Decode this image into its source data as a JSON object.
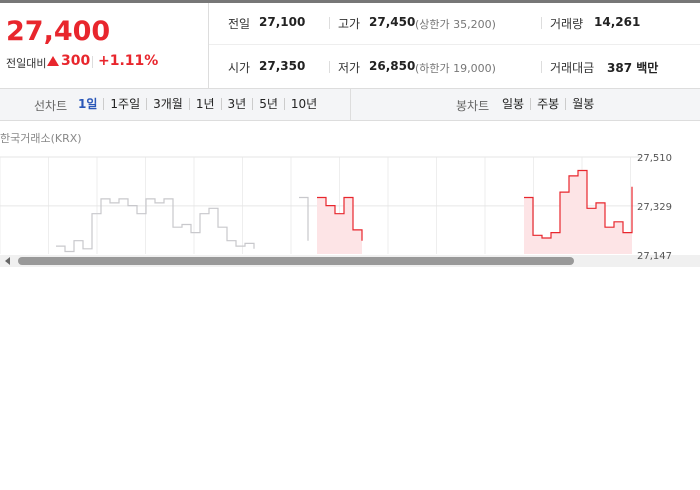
{
  "header": {
    "price": "27,400",
    "change_label": "전일대비",
    "change": "300",
    "change_pct": "+1.11%",
    "stats": [
      {
        "label": "전일",
        "value": "27,100"
      },
      {
        "label": "고가",
        "value": "27,450",
        "note": "(상한가 35,200)"
      },
      {
        "label": "거래량",
        "value": "14,261"
      },
      {
        "label": "시가",
        "value": "27,350"
      },
      {
        "label": "저가",
        "value": "26,850",
        "note": "(하한가 19,000)"
      },
      {
        "label": "거래대금",
        "value": "387 백만"
      }
    ]
  },
  "tabs": {
    "line_label": "선차트",
    "line_tabs": [
      "1일",
      "1주일",
      "3개월",
      "1년",
      "3년",
      "5년",
      "10년"
    ],
    "candle_label": "봉차트",
    "candle_tabs": [
      "일봉",
      "주봉",
      "월봉"
    ]
  },
  "chart_data": {
    "type": "line",
    "source": "한국거래소(KRX)",
    "ylim": [
      27147,
      27510
    ],
    "yticks": [
      {
        "value": 27510,
        "label": "27,510"
      },
      {
        "value": 27329,
        "label": "27,329"
      },
      {
        "value": 27147,
        "label": "27,147"
      }
    ],
    "series": [
      {
        "color": "#c8c8cc",
        "values": [
          null,
          null,
          null,
          null,
          null,
          null,
          27180,
          27160,
          27200,
          27170,
          27300,
          27355,
          27340,
          27355,
          27330,
          27300,
          27355,
          27340,
          27355,
          27250,
          27260,
          27230,
          27300,
          27320,
          27250,
          27200,
          27180,
          27190,
          27170,
          null,
          null,
          null,
          null,
          27360,
          27200,
          null,
          null,
          null,
          null,
          null,
          null,
          null,
          null,
          null,
          null,
          null,
          null,
          null,
          null,
          null,
          null,
          null,
          null,
          null,
          null,
          null,
          null,
          null,
          null,
          null,
          null,
          null,
          null,
          null,
          null,
          null,
          null,
          null,
          null,
          null,
          null
        ]
      },
      {
        "color": "#e8262d",
        "area": "#fde4e6",
        "values": [
          null,
          null,
          null,
          null,
          null,
          null,
          null,
          null,
          null,
          null,
          null,
          null,
          null,
          null,
          null,
          null,
          null,
          null,
          null,
          null,
          null,
          null,
          null,
          null,
          null,
          null,
          null,
          null,
          null,
          null,
          null,
          null,
          null,
          null,
          null,
          27360,
          27330,
          27300,
          27360,
          27240,
          27200,
          null,
          null,
          null,
          null,
          null,
          null,
          null,
          null,
          null,
          null,
          null,
          null,
          null,
          null,
          null,
          null,
          null,
          27360,
          27220,
          27210,
          27230,
          27380,
          27440,
          27460,
          27320,
          27340,
          27250,
          27270,
          27230,
          27400
        ]
      }
    ]
  }
}
